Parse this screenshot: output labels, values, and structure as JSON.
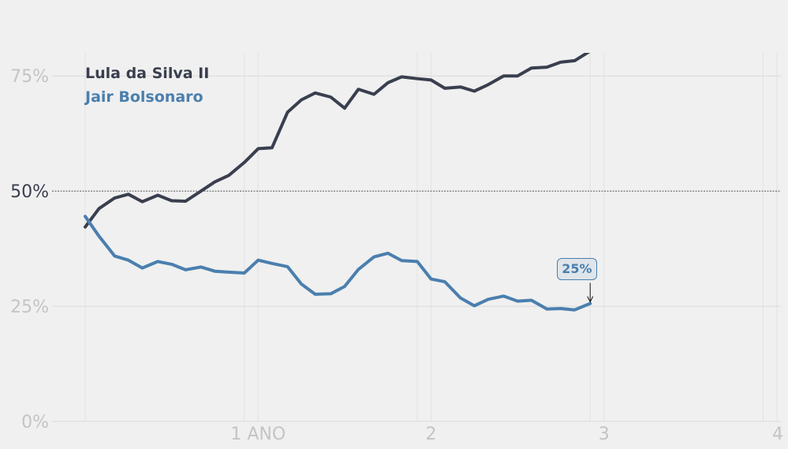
{
  "chart_data": {
    "type": "line",
    "title": "",
    "xlabel": "",
    "ylabel": "",
    "xlim": [
      0,
      4
    ],
    "ylim": [
      0,
      80
    ],
    "x_ticks": [
      {
        "value": 1,
        "label": "1 ANO"
      },
      {
        "value": 2,
        "label": "2"
      },
      {
        "value": 3,
        "label": "3"
      },
      {
        "value": 4,
        "label": "4"
      }
    ],
    "y_ticks": [
      {
        "value": 0,
        "label": "0%"
      },
      {
        "value": 25,
        "label": "25%"
      },
      {
        "value": 50,
        "label": "50%"
      },
      {
        "value": 75,
        "label": "75%"
      }
    ],
    "reference_line": 50,
    "grid": true,
    "series": [
      {
        "name": "Lula da Silva II",
        "color": "#3a3f4f",
        "points": [
          [
            0.0,
            42.2
          ],
          [
            0.08,
            46.2
          ],
          [
            0.17,
            48.5
          ],
          [
            0.25,
            49.3
          ],
          [
            0.33,
            47.7
          ],
          [
            0.42,
            49.1
          ],
          [
            0.5,
            47.9
          ],
          [
            0.58,
            47.8
          ],
          [
            0.67,
            50.0
          ],
          [
            0.75,
            52.0
          ],
          [
            0.83,
            53.4
          ],
          [
            0.92,
            56.2
          ],
          [
            1.0,
            59.2
          ],
          [
            1.08,
            59.4
          ],
          [
            1.17,
            67.1
          ],
          [
            1.25,
            69.8
          ],
          [
            1.33,
            71.3
          ],
          [
            1.42,
            70.4
          ],
          [
            1.5,
            68.0
          ],
          [
            1.58,
            72.1
          ],
          [
            1.67,
            71.0
          ],
          [
            1.75,
            73.5
          ],
          [
            1.83,
            74.8
          ],
          [
            1.92,
            74.4
          ],
          [
            2.0,
            74.1
          ],
          [
            2.08,
            72.3
          ],
          [
            2.17,
            72.6
          ],
          [
            2.25,
            71.7
          ],
          [
            2.33,
            73.1
          ],
          [
            2.42,
            75.0
          ],
          [
            2.5,
            75.0
          ],
          [
            2.58,
            76.7
          ],
          [
            2.67,
            76.9
          ],
          [
            2.75,
            78.0
          ],
          [
            2.83,
            78.3
          ],
          [
            2.92,
            80.4
          ]
        ]
      },
      {
        "name": "Jair Bolsonaro",
        "color": "#4a7fae",
        "points": [
          [
            0.0,
            44.5
          ],
          [
            0.08,
            40.2
          ],
          [
            0.17,
            35.9
          ],
          [
            0.25,
            35.0
          ],
          [
            0.33,
            33.3
          ],
          [
            0.42,
            34.7
          ],
          [
            0.5,
            34.1
          ],
          [
            0.58,
            32.9
          ],
          [
            0.67,
            33.5
          ],
          [
            0.75,
            32.6
          ],
          [
            0.83,
            32.4
          ],
          [
            0.92,
            32.2
          ],
          [
            1.0,
            35.0
          ],
          [
            1.08,
            34.3
          ],
          [
            1.17,
            33.6
          ],
          [
            1.25,
            29.8
          ],
          [
            1.33,
            27.6
          ],
          [
            1.42,
            27.7
          ],
          [
            1.5,
            29.3
          ],
          [
            1.58,
            33.0
          ],
          [
            1.67,
            35.7
          ],
          [
            1.75,
            36.5
          ],
          [
            1.83,
            34.9
          ],
          [
            1.92,
            34.7
          ],
          [
            2.0,
            30.9
          ],
          [
            2.08,
            30.3
          ],
          [
            2.17,
            26.8
          ],
          [
            2.25,
            25.1
          ],
          [
            2.33,
            26.5
          ],
          [
            2.42,
            27.2
          ],
          [
            2.5,
            26.1
          ],
          [
            2.58,
            26.3
          ],
          [
            2.67,
            24.4
          ],
          [
            2.75,
            24.5
          ],
          [
            2.83,
            24.2
          ],
          [
            2.92,
            25.6
          ]
        ]
      }
    ],
    "annotation": {
      "label": "25%",
      "x": 2.92,
      "y": 25.6,
      "color": "#4a7fae"
    },
    "legend_position": "top-left"
  }
}
